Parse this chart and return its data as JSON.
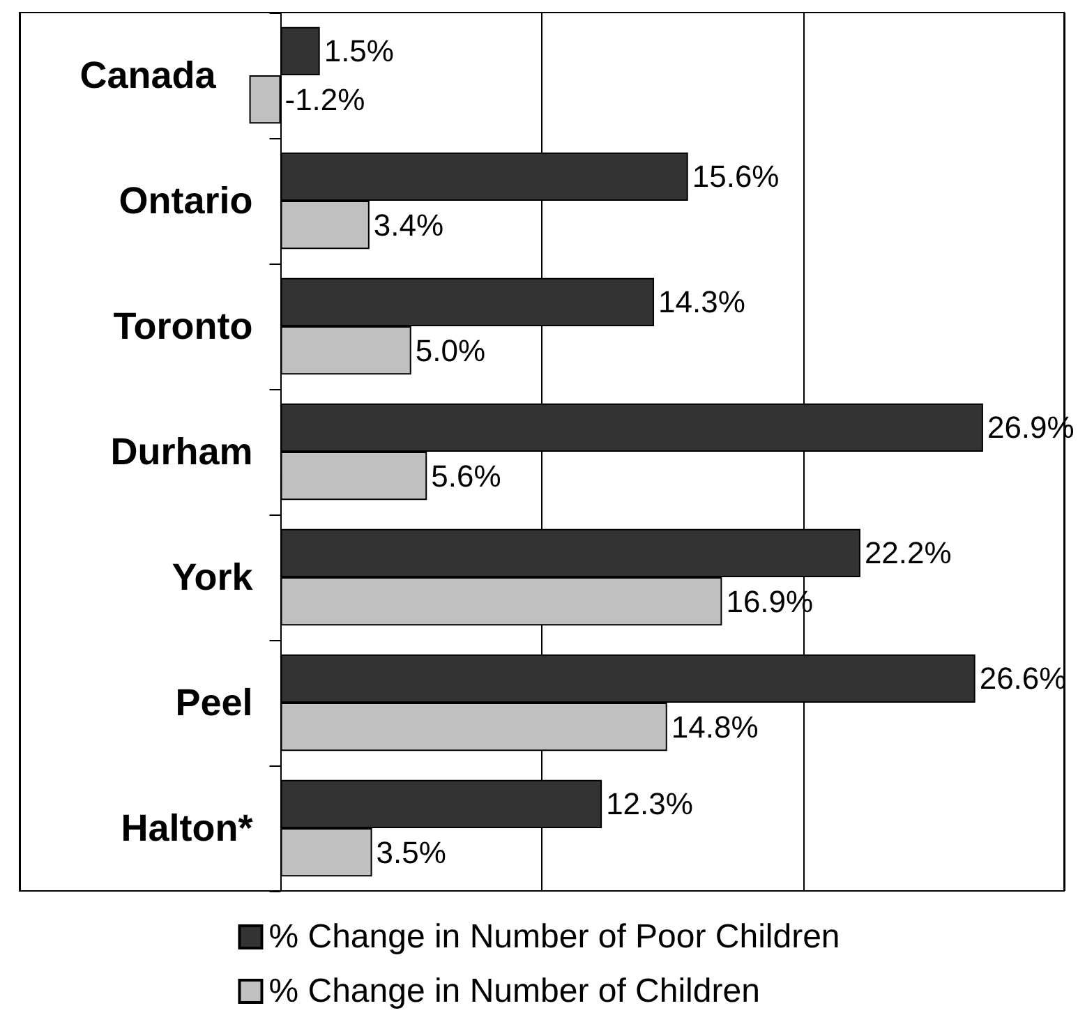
{
  "chart_data": {
    "type": "bar",
    "orientation": "horizontal",
    "categories": [
      "Canada",
      "Ontario",
      "Toronto",
      "Durham",
      "York",
      "Peel",
      "Halton*"
    ],
    "series": [
      {
        "name": "% Change in Number of Poor Children",
        "color": "#333333",
        "values": [
          1.5,
          15.6,
          14.3,
          26.9,
          22.2,
          26.6,
          12.3
        ],
        "value_labels": [
          "1.5%",
          "15.6%",
          "14.3%",
          "26.9%",
          "22.2%",
          "26.6%",
          "12.3%"
        ]
      },
      {
        "name": "% Change in Number of Children",
        "color": "#c0c0c0",
        "values": [
          -1.2,
          3.4,
          5.0,
          5.6,
          16.9,
          14.8,
          3.5
        ],
        "value_labels": [
          "-1.2%",
          "3.4%",
          "5.0%",
          "5.6%",
          "16.9%",
          "14.8%",
          "3.5%"
        ]
      }
    ],
    "xlim": [
      -10,
      30
    ],
    "xticks": [
      {
        "value": -10,
        "label": null
      },
      {
        "value": 0,
        "label": null
      },
      {
        "value": 10,
        "label": null
      },
      {
        "value": 20,
        "label": null
      },
      {
        "value": 30,
        "label": null
      }
    ],
    "grid": "x",
    "legend": "bottom",
    "tick_labels": "y"
  }
}
